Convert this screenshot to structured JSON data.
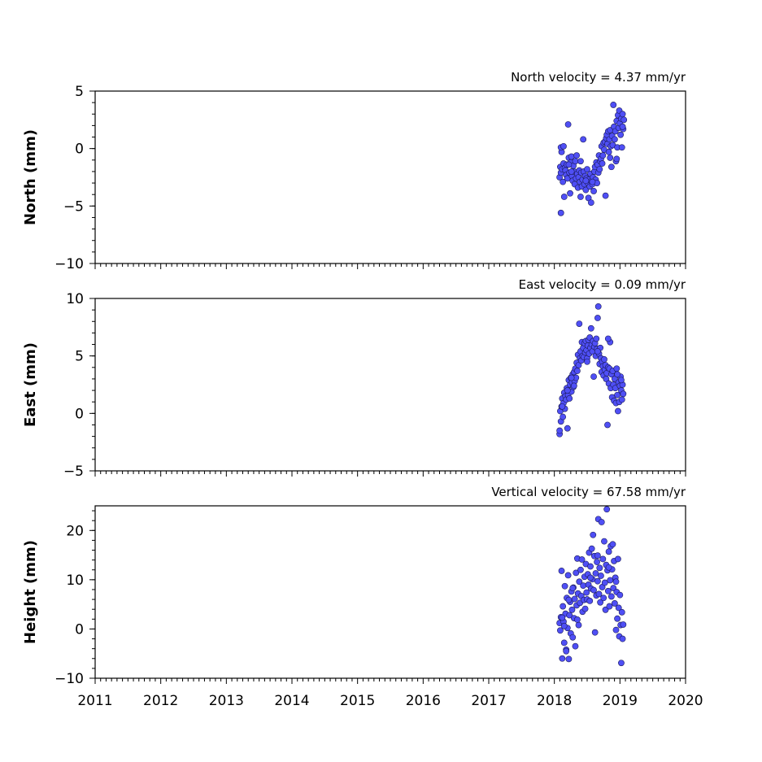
{
  "chart_data": [
    {
      "type": "scatter",
      "title": "North velocity = 4.37 mm/yr",
      "ylabel": "North (mm)",
      "xlim": [
        2011,
        2020
      ],
      "ylim": [
        -10,
        5
      ],
      "yticks": [
        "5",
        "0",
        "−5",
        "−10"
      ],
      "series": [
        {
          "x": [
            2018.08,
            2018.09,
            2018.1,
            2018.1,
            2018.11,
            2018.12,
            2018.13,
            2018.14,
            2018.15,
            2018.16,
            2018.17,
            2018.18,
            2018.19,
            2018.2,
            2018.21,
            2018.22,
            2018.23,
            2018.24,
            2018.25,
            2018.26,
            2018.27,
            2018.28,
            2018.29,
            2018.3,
            2018.31,
            2018.32,
            2018.33,
            2018.34,
            2018.35,
            2018.36,
            2018.37,
            2018.38,
            2018.39,
            2018.4,
            2018.41,
            2018.42,
            2018.43,
            2018.44,
            2018.45,
            2018.46,
            2018.47,
            2018.48,
            2018.49,
            2018.5,
            2018.51,
            2018.52,
            2018.53,
            2018.54,
            2018.55,
            2018.56,
            2018.57,
            2018.58,
            2018.59,
            2018.6,
            2018.61,
            2018.62,
            2018.63,
            2018.64,
            2018.65,
            2018.66,
            2018.67,
            2018.68,
            2018.69,
            2018.7,
            2018.71,
            2018.72,
            2018.73,
            2018.74,
            2018.75,
            2018.76,
            2018.77,
            2018.78,
            2018.79,
            2018.8,
            2018.81,
            2018.82,
            2018.83,
            2018.84,
            2018.85,
            2018.86,
            2018.87,
            2018.88,
            2018.89,
            2018.9,
            2018.91,
            2018.92,
            2018.93,
            2018.94,
            2018.95,
            2018.96,
            2018.97,
            2018.98,
            2018.99,
            2019.0,
            2019.01,
            2019.02,
            2019.03,
            2019.04,
            2019.05,
            2019.06,
            2018.1,
            2018.14,
            2018.22,
            2018.4,
            2018.48,
            2018.58,
            2018.85,
            2018.95,
            2019.04,
            2018.26
          ],
          "y": [
            -2.5,
            -1.6,
            -5.6,
            -2.1,
            -0.3,
            -1.8,
            -2.9,
            -1.3,
            -4.2,
            -1.7,
            -1.9,
            -2.3,
            -1.4,
            -2.6,
            2.1,
            -0.8,
            -2.1,
            -3.9,
            -1.2,
            -0.7,
            -2.4,
            -2.8,
            -1.5,
            -2.0,
            -3.1,
            -1.1,
            -2.6,
            -0.6,
            -2.2,
            -3.4,
            -2.5,
            -1.9,
            -2.9,
            -4.2,
            -2.1,
            -3.3,
            -2.7,
            0.8,
            -2.0,
            -3.1,
            -2.4,
            -3.6,
            -2.6,
            -1.8,
            -3.0,
            -4.3,
            -2.7,
            -3.3,
            -2.2,
            -4.7,
            -2.8,
            -3.1,
            -2.5,
            -3.7,
            -2.0,
            -1.6,
            -2.7,
            -1.2,
            -3.0,
            -1.4,
            -2.1,
            -0.6,
            -1.8,
            -1.1,
            -0.9,
            0.2,
            -1.3,
            -0.6,
            0.5,
            -0.1,
            0.6,
            -4.1,
            0.9,
            1.2,
            0.4,
            1.5,
            -0.3,
            0.8,
            1.6,
            0.2,
            -1.6,
            1.1,
            0.3,
            3.8,
            1.9,
            0.8,
            1.5,
            -1.1,
            2.4,
            0.1,
            2.9,
            1.8,
            3.3,
            2.2,
            1.2,
            2.6,
            0.1,
            3.0,
            1.7,
            2.5,
            0.1,
            0.2,
            -1.4,
            -1.1,
            -2.8,
            -2.9,
            -0.8,
            -0.9,
            1.9,
            -2.0
          ]
        }
      ]
    },
    {
      "type": "scatter",
      "title": "East velocity = 0.09 mm/yr",
      "ylabel": "East (mm)",
      "xlim": [
        2011,
        2020
      ],
      "ylim": [
        -5,
        10
      ],
      "yticks": [
        "10",
        "5",
        "0",
        "−5"
      ],
      "series": [
        {
          "x": [
            2018.08,
            2018.09,
            2018.1,
            2018.11,
            2018.12,
            2018.13,
            2018.14,
            2018.15,
            2018.16,
            2018.17,
            2018.18,
            2018.19,
            2018.2,
            2018.21,
            2018.22,
            2018.23,
            2018.24,
            2018.25,
            2018.26,
            2018.27,
            2018.28,
            2018.29,
            2018.3,
            2018.31,
            2018.32,
            2018.33,
            2018.34,
            2018.35,
            2018.36,
            2018.37,
            2018.38,
            2018.39,
            2018.4,
            2018.41,
            2018.42,
            2018.43,
            2018.44,
            2018.45,
            2018.46,
            2018.47,
            2018.48,
            2018.49,
            2018.5,
            2018.51,
            2018.52,
            2018.53,
            2018.54,
            2018.55,
            2018.56,
            2018.57,
            2018.58,
            2018.59,
            2018.6,
            2018.61,
            2018.62,
            2018.63,
            2018.64,
            2018.65,
            2018.66,
            2018.67,
            2018.68,
            2018.69,
            2018.7,
            2018.71,
            2018.72,
            2018.73,
            2018.74,
            2018.75,
            2018.76,
            2018.77,
            2018.78,
            2018.79,
            2018.8,
            2018.81,
            2018.82,
            2018.83,
            2018.84,
            2018.85,
            2018.86,
            2018.87,
            2018.88,
            2018.89,
            2018.9,
            2018.91,
            2018.92,
            2018.93,
            2018.94,
            2018.95,
            2018.96,
            2018.97,
            2018.98,
            2018.99,
            2019.0,
            2019.01,
            2019.02,
            2019.03,
            2019.04,
            2019.05,
            2018.08,
            2018.12,
            2018.2,
            2018.26,
            2018.3,
            2018.5,
            2018.82,
            2018.96,
            2019.02,
            2018.66
          ],
          "y": [
            -1.8,
            0.2,
            -0.7,
            0.6,
            1.3,
            -0.3,
            0.9,
            1.8,
            0.4,
            1.5,
            1.2,
            2.2,
            -1.3,
            1.6,
            2.9,
            1.3,
            2.5,
            3.1,
            1.9,
            2.7,
            3.4,
            2.3,
            3.6,
            2.8,
            3.9,
            3.1,
            4.4,
            3.7,
            5.1,
            4.2,
            7.8,
            4.8,
            5.4,
            4.6,
            6.2,
            5.0,
            5.7,
            4.9,
            6.1,
            5.3,
            6.3,
            5.5,
            4.8,
            5.9,
            6.4,
            5.2,
            6.6,
            5.7,
            7.4,
            6.0,
            5.4,
            6.3,
            3.2,
            5.8,
            6.1,
            5.0,
            6.5,
            5.6,
            8.3,
            9.3,
            5.2,
            4.3,
            5.7,
            4.8,
            3.6,
            4.5,
            4.1,
            3.3,
            4.7,
            3.8,
            4.2,
            3.0,
            3.5,
            -1.0,
            4.0,
            2.6,
            3.9,
            6.2,
            2.2,
            3.4,
            1.4,
            3.7,
            2.5,
            1.1,
            3.0,
            2.2,
            0.9,
            3.9,
            1.6,
            0.2,
            2.7,
            1.0,
            2.4,
            3.2,
            2.0,
            1.2,
            2.5,
            1.7,
            -1.5,
            0.6,
            2.0,
            3.1,
            2.4,
            4.5,
            6.5,
            3.4,
            2.9,
            5.4
          ]
        }
      ]
    },
    {
      "type": "scatter",
      "title": "Vertical velocity = 67.58 mm/yr",
      "ylabel": "Height (mm)",
      "xlim": [
        2011,
        2020
      ],
      "ylim": [
        -10,
        25
      ],
      "yticks": [
        "20",
        "10",
        "0",
        "−10"
      ],
      "xticks": [
        "2011",
        "2012",
        "2013",
        "2014",
        "2015",
        "2016",
        "2017",
        "2018",
        "2019",
        "2020"
      ],
      "series": [
        {
          "x": [
            2018.08,
            2018.09,
            2018.1,
            2018.11,
            2018.12,
            2018.13,
            2018.14,
            2018.15,
            2018.16,
            2018.17,
            2018.18,
            2018.19,
            2018.2,
            2018.21,
            2018.22,
            2018.23,
            2018.24,
            2018.25,
            2018.26,
            2018.27,
            2018.28,
            2018.29,
            2018.3,
            2018.31,
            2018.32,
            2018.33,
            2018.34,
            2018.35,
            2018.36,
            2018.37,
            2018.38,
            2018.39,
            2018.4,
            2018.41,
            2018.42,
            2018.43,
            2018.44,
            2018.45,
            2018.46,
            2018.47,
            2018.48,
            2018.49,
            2018.5,
            2018.51,
            2018.52,
            2018.53,
            2018.54,
            2018.55,
            2018.56,
            2018.57,
            2018.58,
            2018.59,
            2018.6,
            2018.61,
            2018.62,
            2018.63,
            2018.64,
            2018.65,
            2018.66,
            2018.67,
            2018.68,
            2018.69,
            2018.7,
            2018.71,
            2018.72,
            2018.73,
            2018.74,
            2018.75,
            2018.76,
            2018.77,
            2018.78,
            2018.79,
            2018.8,
            2018.81,
            2018.82,
            2018.83,
            2018.84,
            2018.85,
            2018.86,
            2018.87,
            2018.88,
            2018.89,
            2018.9,
            2018.91,
            2018.92,
            2018.93,
            2018.94,
            2018.95,
            2018.96,
            2018.97,
            2018.98,
            2018.99,
            2019.0,
            2019.01,
            2019.02,
            2019.03,
            2019.04,
            2019.05,
            2018.12,
            2018.15,
            2018.18,
            2018.22,
            2018.28,
            2018.35,
            2018.55,
            2018.66,
            2018.83,
            2018.94
          ],
          "y": [
            1.2,
            -0.3,
            2.4,
            11.8,
            -6.0,
            4.6,
            1.5,
            -2.8,
            8.7,
            3.1,
            -4.2,
            6.3,
            0.2,
            10.9,
            -6.1,
            2.8,
            5.5,
            -0.9,
            7.6,
            3.9,
            -1.7,
            8.4,
            2.2,
            6.1,
            -3.5,
            11.4,
            4.8,
            14.3,
            7.2,
            0.8,
            9.6,
            5.3,
            12.0,
            6.7,
            14.1,
            3.5,
            8.8,
            5.9,
            10.6,
            4.1,
            13.2,
            7.4,
            6.0,
            11.1,
            9.0,
            15.5,
            5.7,
            12.7,
            8.2,
            16.3,
            10.1,
            19.1,
            7.9,
            14.8,
            -0.7,
            11.3,
            6.8,
            13.6,
            9.7,
            22.3,
            7.1,
            12.4,
            5.4,
            10.8,
            21.7,
            8.5,
            14.2,
            6.3,
            17.8,
            9.4,
            3.9,
            13.0,
            24.3,
            11.9,
            7.7,
            15.7,
            4.6,
            9.9,
            16.8,
            6.6,
            12.1,
            17.2,
            8.3,
            13.8,
            5.2,
            10.4,
            -0.2,
            7.5,
            2.1,
            14.2,
            4.3,
            -1.5,
            6.9,
            0.8,
            -6.9,
            3.4,
            -2.0,
            0.9,
            2.3,
            0.6,
            -4.5,
            5.9,
            8.3,
            1.9,
            10.4,
            14.9,
            12.5,
            9.6
          ]
        }
      ]
    }
  ]
}
